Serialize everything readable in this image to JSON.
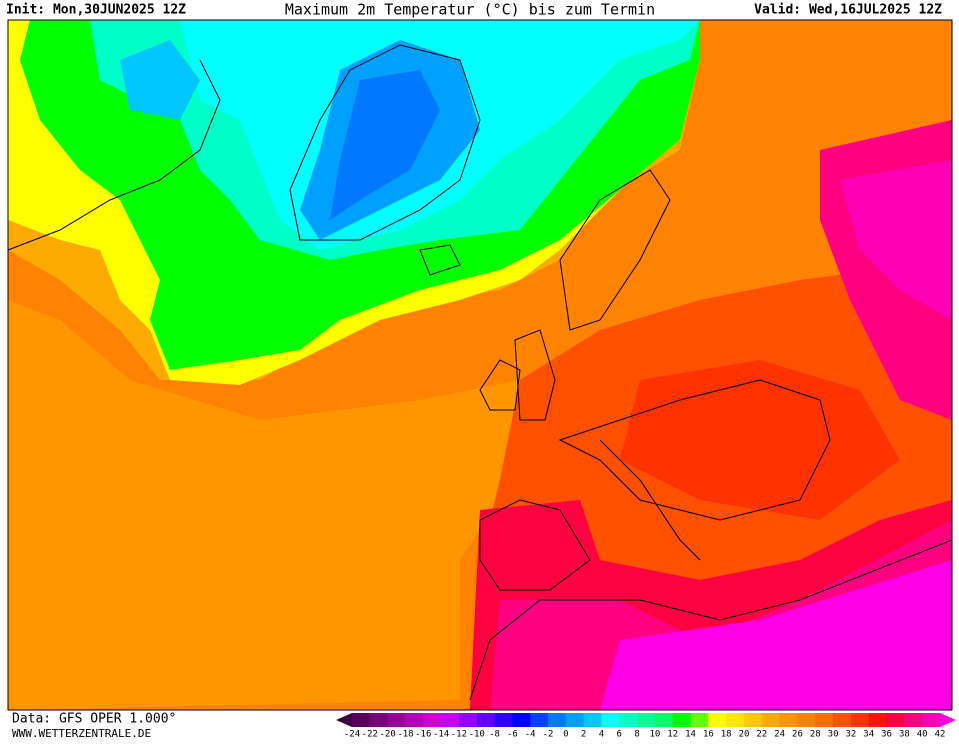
{
  "header": {
    "init": "Init: Mon,30JUN2025 12Z",
    "title": "Maximum 2m Temperatur (°C) bis zum Termin",
    "valid": "Valid: Wed,16JUL2025 12Z"
  },
  "footer": {
    "source": "Data: GFS OPER 1.000°",
    "website": "WWW.WETTERZENTRALE.DE"
  },
  "legend": {
    "labels": [
      "-24",
      "-22",
      "-20",
      "-18",
      "-16",
      "-14",
      "-12",
      "-10",
      "-8",
      "-6",
      "-4",
      "-2",
      "0",
      "2",
      "4",
      "6",
      "8",
      "10",
      "12",
      "14",
      "16",
      "18",
      "20",
      "22",
      "24",
      "26",
      "28",
      "30",
      "32",
      "34",
      "36",
      "38",
      "40",
      "42"
    ],
    "colors": [
      "#3c003c",
      "#5a005a",
      "#780078",
      "#960096",
      "#b400b4",
      "#d200d2",
      "#c800ff",
      "#9600ff",
      "#6400ff",
      "#3200ff",
      "#0000ff",
      "#0040ff",
      "#0078ff",
      "#00a0ff",
      "#00c8ff",
      "#00ffff",
      "#00ffc8",
      "#00ff96",
      "#00ff64",
      "#00ff00",
      "#64ff00",
      "#ffff00",
      "#ffe600",
      "#ffc800",
      "#ffaa00",
      "#ff9600",
      "#ff8200",
      "#ff6e00",
      "#ff5000",
      "#ff3200",
      "#ff1400",
      "#ff0040",
      "#ff0080",
      "#ff00b4",
      "#ff00e6"
    ]
  }
}
